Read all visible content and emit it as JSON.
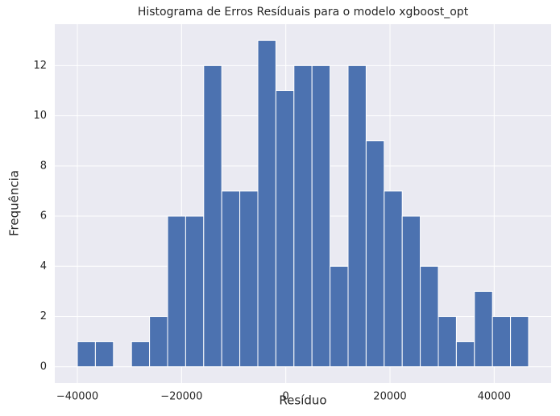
{
  "chart_data": {
    "type": "histogram",
    "title": "Histograma de Erros Resíduais para o modelo xgboost_opt",
    "xlabel": "Resíduo",
    "ylabel": "Frequência",
    "bins": [
      -40000,
      -36536,
      -33072,
      -29608,
      -26144,
      -22680,
      -19216,
      -15752,
      -12288,
      -8824,
      -5360,
      -1896,
      1568,
      5032,
      8496,
      11960,
      15424,
      18888,
      22352,
      25816,
      29280,
      32744,
      36208,
      39672,
      43136,
      46600
    ],
    "counts": [
      1,
      1,
      0,
      1,
      2,
      6,
      6,
      12,
      7,
      7,
      13,
      11,
      12,
      12,
      4,
      12,
      9,
      7,
      6,
      4,
      2,
      1,
      3,
      2,
      2
    ],
    "color": "#4c72b0",
    "xlim": [
      -44330,
      50930
    ],
    "ylim": [
      -0.65,
      13.65
    ],
    "xticks": [
      {
        "value": -40000,
        "label": "−40000"
      },
      {
        "value": -20000,
        "label": "−20000"
      },
      0,
      20000,
      40000
    ],
    "yticks": [
      0,
      2,
      4,
      6,
      8,
      10,
      12
    ],
    "grid": true
  }
}
